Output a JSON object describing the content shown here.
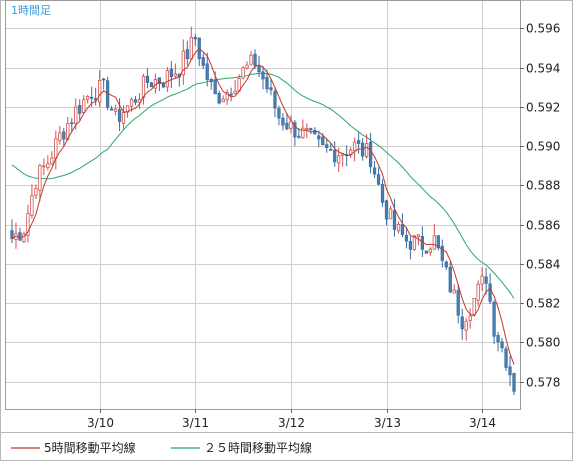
{
  "chart_data": {
    "type": "candlestick",
    "title": "1時間足",
    "y_ticks": [
      0.578,
      0.58,
      0.582,
      0.584,
      0.586,
      0.588,
      0.59,
      0.592,
      0.594,
      0.596
    ],
    "y_tick_labels": [
      "0.578",
      "0.580",
      "0.582",
      "0.584",
      "0.586",
      "0.588",
      "0.590",
      "0.592",
      "0.594",
      "0.596"
    ],
    "ylim": [
      0.5766,
      0.5974
    ],
    "x_tick_labels": [
      "3/10",
      "3/11",
      "3/12",
      "3/13",
      "3/14"
    ],
    "x_tick_index": [
      22,
      46,
      70,
      94,
      118
    ],
    "n_candles": 127,
    "grid": true,
    "legend_position": "bottom",
    "colors": {
      "up_body": "#ffffff",
      "up_border": "#d2524f",
      "down_body": "#4a7fb3",
      "down_border": "#3d6e9f",
      "ma5": "#c0392b",
      "ma25": "#2aa86a",
      "grid": "#cfcfcf",
      "title": "#3a9ad9"
    },
    "series": [
      {
        "name": "5時間移動平均線",
        "period": 5,
        "color": "#c0392b"
      },
      {
        "name": "２５時間移動平均線",
        "period": 25,
        "color": "#2aa86a"
      }
    ],
    "close_anchors": [
      [
        0,
        0.5853
      ],
      [
        3,
        0.5858
      ],
      [
        6,
        0.5883
      ],
      [
        9,
        0.5892
      ],
      [
        12,
        0.5905
      ],
      [
        16,
        0.5918
      ],
      [
        20,
        0.5928
      ],
      [
        23,
        0.5929
      ],
      [
        26,
        0.5914
      ],
      [
        30,
        0.5922
      ],
      [
        34,
        0.5933
      ],
      [
        38,
        0.5934
      ],
      [
        42,
        0.594
      ],
      [
        46,
        0.5955
      ],
      [
        48,
        0.594
      ],
      [
        51,
        0.5925
      ],
      [
        54,
        0.5928
      ],
      [
        58,
        0.5938
      ],
      [
        61,
        0.5943
      ],
      [
        64,
        0.593
      ],
      [
        67,
        0.5915
      ],
      [
        70,
        0.591
      ],
      [
        74,
        0.5905
      ],
      [
        78,
        0.5898
      ],
      [
        82,
        0.5897
      ],
      [
        86,
        0.59
      ],
      [
        90,
        0.5895
      ],
      [
        93,
        0.5872
      ],
      [
        96,
        0.5858
      ],
      [
        99,
        0.5852
      ],
      [
        103,
        0.585
      ],
      [
        106,
        0.5852
      ],
      [
        108,
        0.584
      ],
      [
        111,
        0.5823
      ],
      [
        113,
        0.5812
      ],
      [
        116,
        0.5822
      ],
      [
        119,
        0.5834
      ],
      [
        121,
        0.5808
      ],
      [
        124,
        0.5792
      ],
      [
        126,
        0.5778
      ]
    ],
    "ma25_start": 0.5892
  },
  "legend": {
    "ma5_label": "5時間移動平均線",
    "ma25_label": "２５時間移動平均線"
  }
}
